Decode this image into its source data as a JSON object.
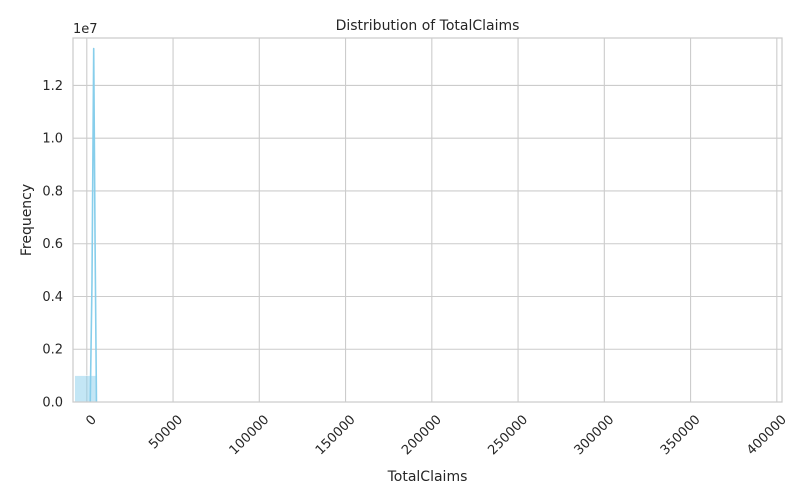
{
  "chart_data": {
    "type": "bar",
    "title": "Distribution of TotalClaims",
    "xlabel": "TotalClaims",
    "ylabel": "Frequency",
    "y_offset_label": "1e7",
    "x_ticks": [
      0,
      50000,
      100000,
      150000,
      200000,
      250000,
      300000,
      350000,
      400000
    ],
    "x_tick_labels": [
      "0",
      "50000",
      "100000",
      "150000",
      "200000",
      "250000",
      "300000",
      "350000",
      "400000"
    ],
    "y_ticks": [
      0,
      0.2,
      0.4,
      0.6,
      0.8,
      1.0,
      1.2
    ],
    "y_tick_labels": [
      "0.0",
      "0.2",
      "0.4",
      "0.6",
      "0.8",
      "1.0",
      "1.2"
    ],
    "y_scale": 10000000,
    "xlim": [
      -8000,
      403000
    ],
    "ylim": [
      0,
      13800000
    ],
    "grid": true,
    "x_tick_rotation": 45,
    "histogram_bins": [
      {
        "x_start": -7000,
        "x_end": 6000,
        "count": 1000000
      }
    ],
    "kde_line": [
      {
        "x": 2000,
        "y": 0
      },
      {
        "x": 3000,
        "y": 4500000
      },
      {
        "x": 4000,
        "y": 13400000
      },
      {
        "x": 4800,
        "y": 6000000
      },
      {
        "x": 5600,
        "y": 0
      }
    ],
    "colors": {
      "bar": "#87ceeb",
      "bar_alpha": 0.5,
      "line": "#87ceeb",
      "grid": "#cccccc",
      "axes_edge": "#cccccc"
    }
  }
}
